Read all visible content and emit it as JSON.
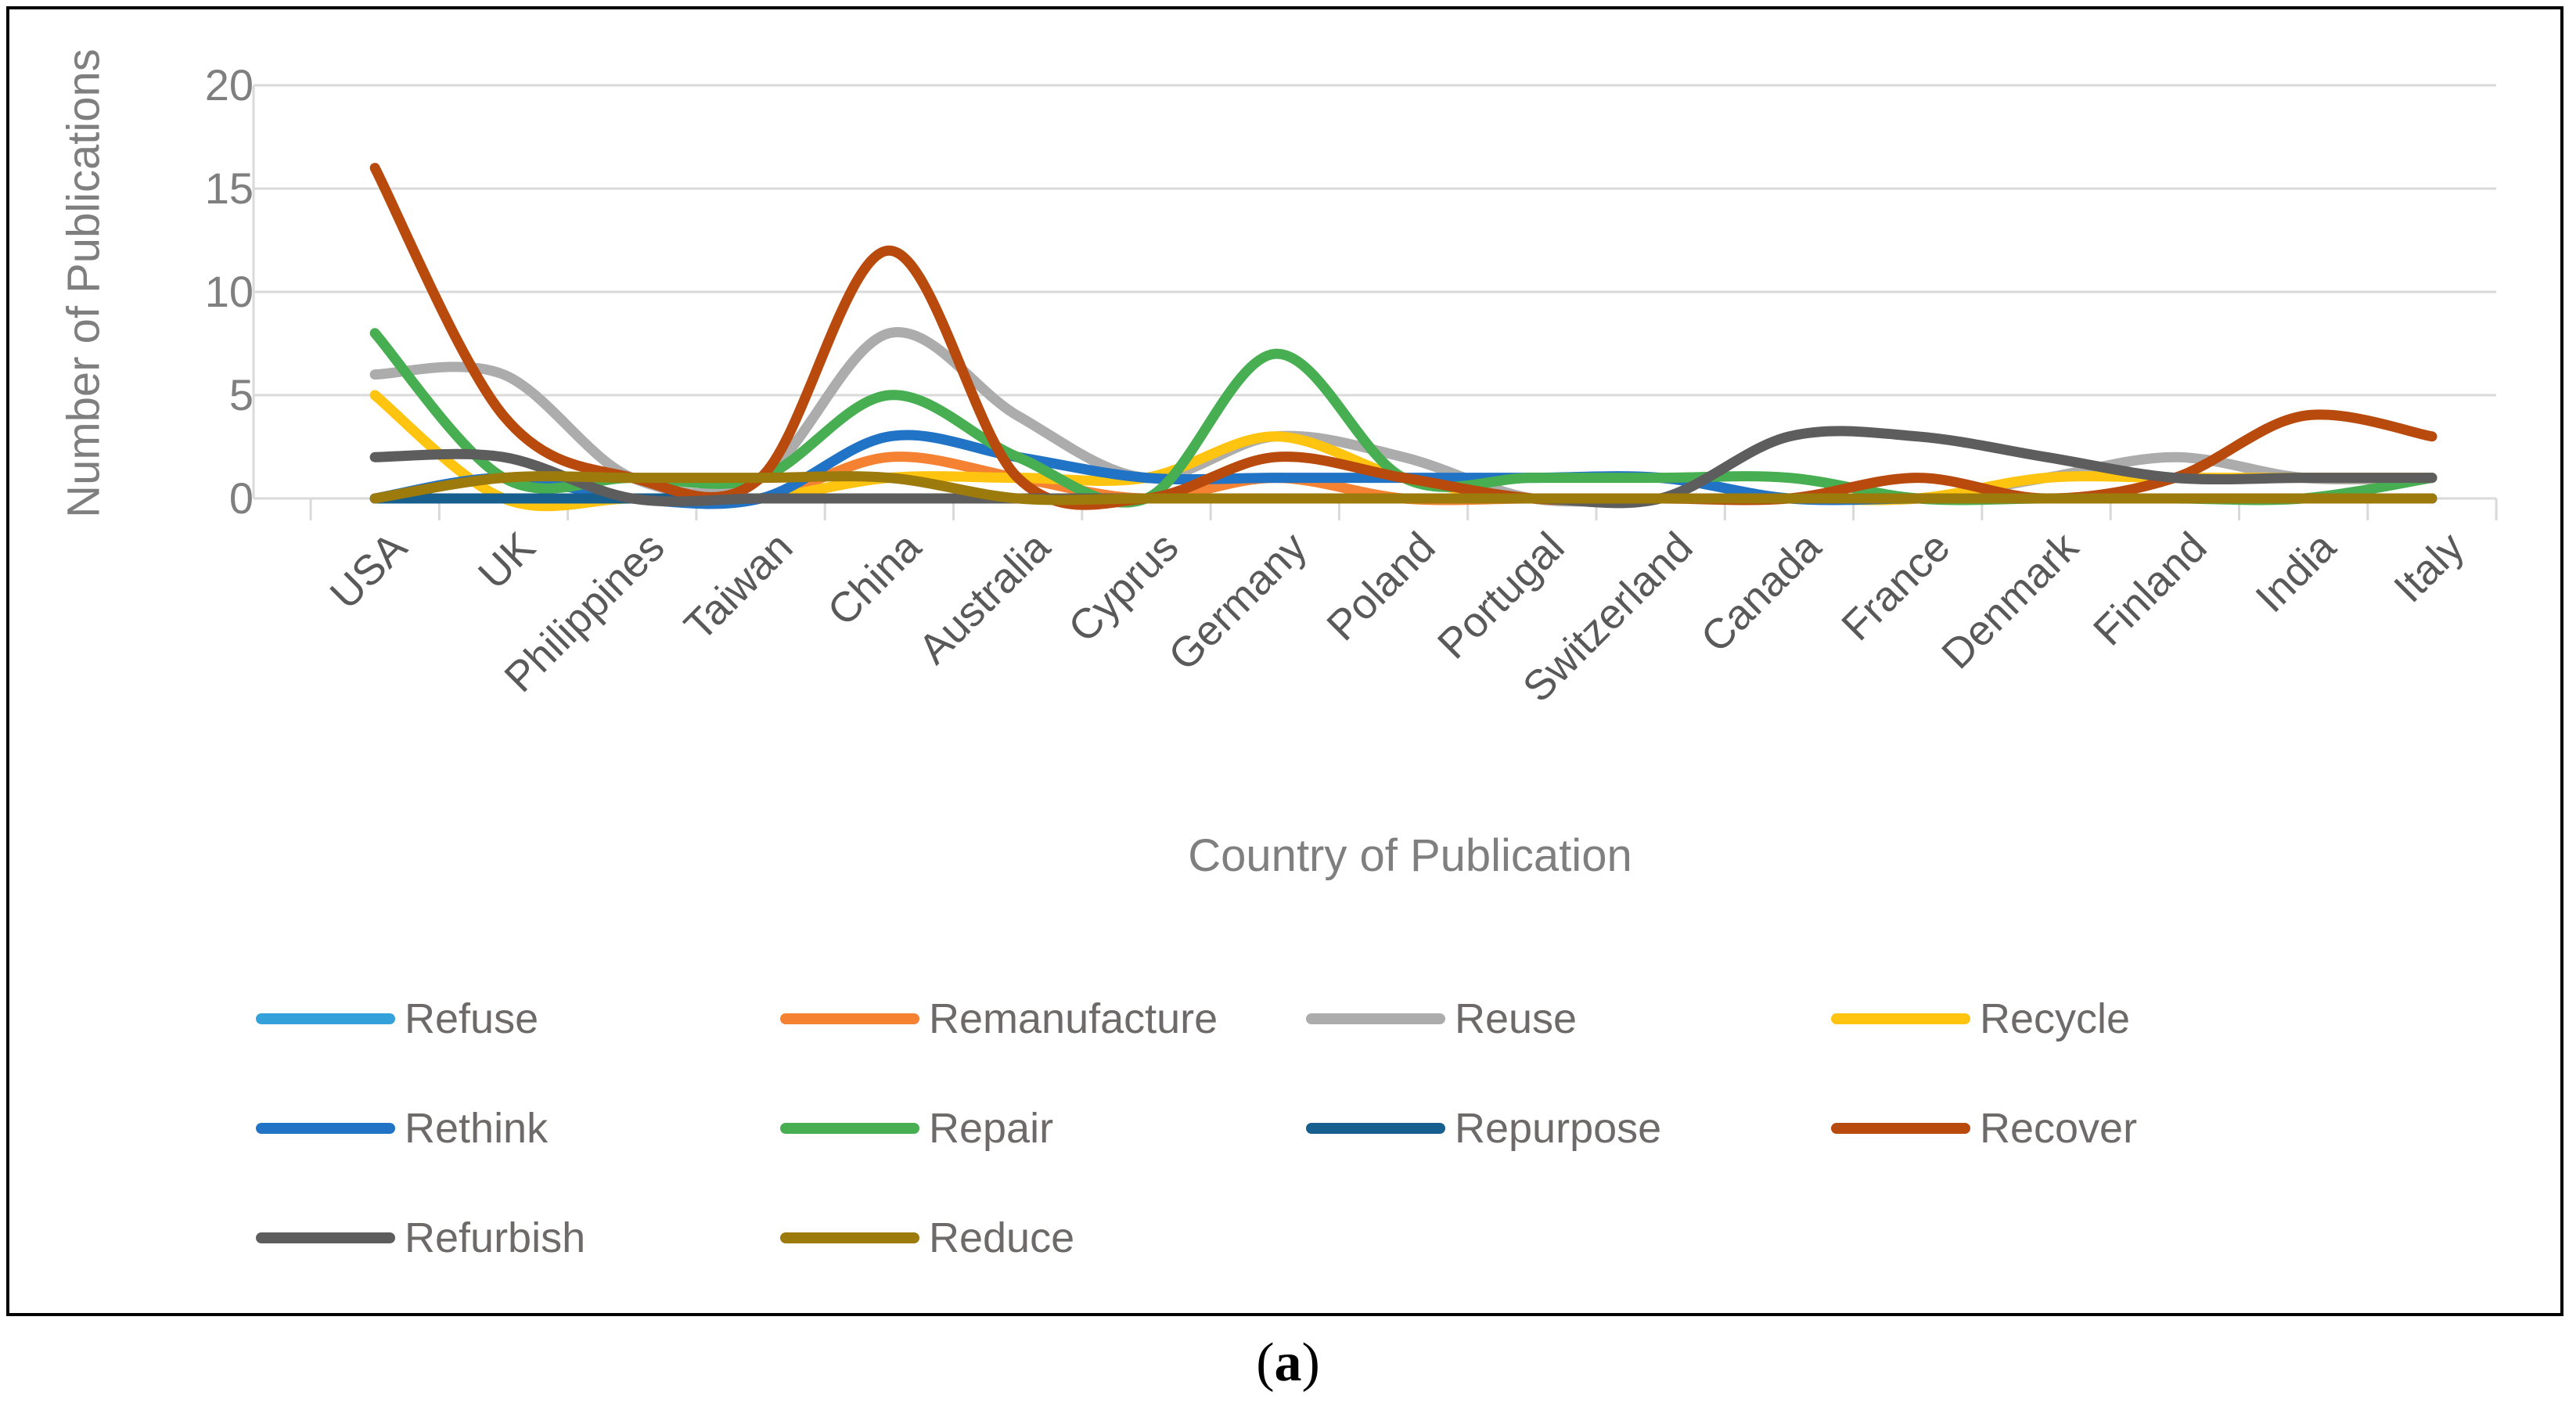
{
  "caption": {
    "open": "(",
    "letter": "a",
    "close": ")"
  },
  "chart_data": {
    "type": "line",
    "title": "",
    "xlabel": "Country of Publication",
    "ylabel": "Number of Publications",
    "ylim": [
      0,
      20
    ],
    "yticks": [
      0,
      5,
      10,
      15,
      20
    ],
    "grid": true,
    "smooth": true,
    "legend_position": "bottom",
    "categories": [
      "USA",
      "UK",
      "Philippines",
      "Taiwan",
      "China",
      "Australia",
      "Cyprus",
      "Germany",
      "Poland",
      "Portugal",
      "Switzerland",
      "Canada",
      "France",
      "Denmark",
      "Finland",
      "India",
      "Italy"
    ],
    "series": [
      {
        "name": "Refuse",
        "color": "#35A1DB",
        "values": [
          0,
          0,
          0,
          0,
          0,
          0,
          0,
          0,
          0,
          0,
          0,
          0,
          0,
          0,
          0,
          0,
          0
        ]
      },
      {
        "name": "Remanufacture",
        "color": "#F58233",
        "values": [
          0,
          0,
          0,
          0,
          2,
          1,
          0,
          1,
          0,
          0,
          0,
          0,
          0,
          0,
          0,
          0,
          0
        ]
      },
      {
        "name": "Reuse",
        "color": "#ACACAC",
        "values": [
          6,
          6,
          1,
          1,
          8,
          4,
          1,
          3,
          2,
          0,
          0,
          0,
          0,
          1,
          2,
          1,
          1
        ]
      },
      {
        "name": "Recycle",
        "color": "#FEC40F",
        "values": [
          5,
          0,
          0,
          0,
          1,
          1,
          1,
          3,
          1,
          0,
          0,
          0,
          0,
          1,
          1,
          1,
          1
        ]
      },
      {
        "name": "Rethink",
        "color": "#2173C5",
        "values": [
          0,
          1,
          0,
          0,
          3,
          2,
          1,
          1,
          1,
          1,
          1,
          0,
          0,
          0,
          0,
          0,
          0
        ]
      },
      {
        "name": "Repair",
        "color": "#47AF51",
        "values": [
          8,
          1,
          1,
          1,
          5,
          2,
          0,
          7,
          1,
          1,
          1,
          1,
          0,
          0,
          0,
          0,
          1
        ]
      },
      {
        "name": "Repurpose",
        "color": "#175F8F",
        "values": [
          0,
          0,
          0,
          0,
          0,
          0,
          0,
          0,
          0,
          0,
          0,
          0,
          0,
          0,
          0,
          0,
          0
        ]
      },
      {
        "name": "Recover",
        "color": "#B94A0D",
        "values": [
          16,
          4,
          1,
          1,
          12,
          1,
          0,
          2,
          1,
          0,
          0,
          0,
          1,
          0,
          1,
          4,
          3
        ]
      },
      {
        "name": "Refurbish",
        "color": "#5D5D5D",
        "values": [
          2,
          2,
          0,
          0,
          0,
          0,
          0,
          0,
          0,
          0,
          0,
          3,
          3,
          2,
          1,
          1,
          1
        ]
      },
      {
        "name": "Reduce",
        "color": "#9D7A0C",
        "values": [
          0,
          1,
          1,
          1,
          1,
          0,
          0,
          0,
          0,
          0,
          0,
          0,
          0,
          0,
          0,
          0,
          0
        ]
      }
    ]
  }
}
